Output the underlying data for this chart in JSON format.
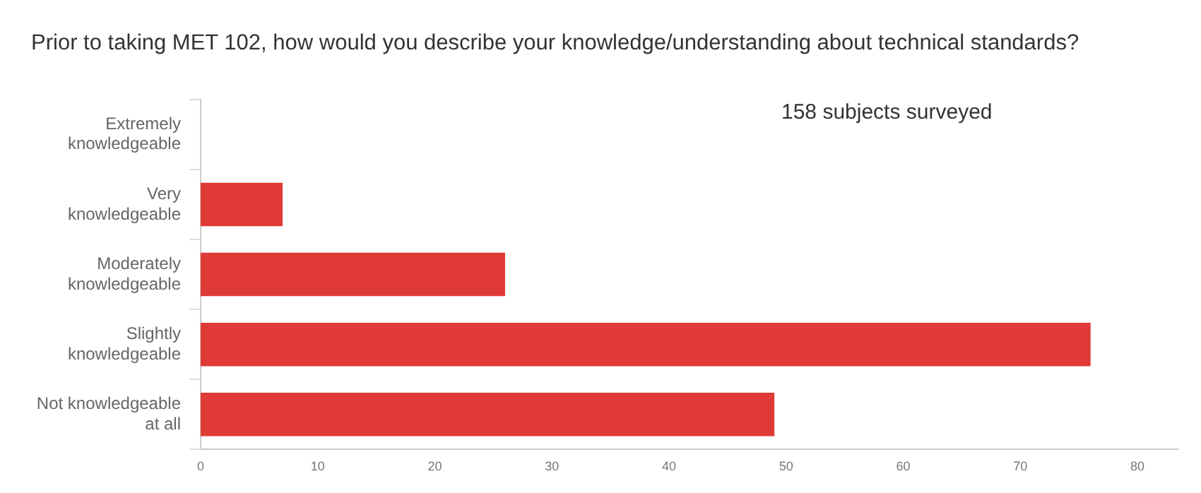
{
  "chart_data": {
    "type": "bar",
    "orientation": "horizontal",
    "title": "Prior to taking MET 102, how would you describe your knowledge/understanding about technical standards?",
    "categories": [
      "Extremely\nknowledgeable",
      "Very\nknowledgeable",
      "Moderately\nknowledgeable",
      "Slightly\nknowledgeable",
      "Not knowledgeable\nat all"
    ],
    "values": [
      0,
      7,
      26,
      76,
      49
    ],
    "color": "#e03a36",
    "xlim": [
      0,
      83.5
    ],
    "xticks": [
      0,
      10,
      20,
      30,
      40,
      50,
      60,
      70,
      80
    ],
    "annotations": [
      "158 subjects surveyed"
    ],
    "grid": false,
    "legend": false
  }
}
